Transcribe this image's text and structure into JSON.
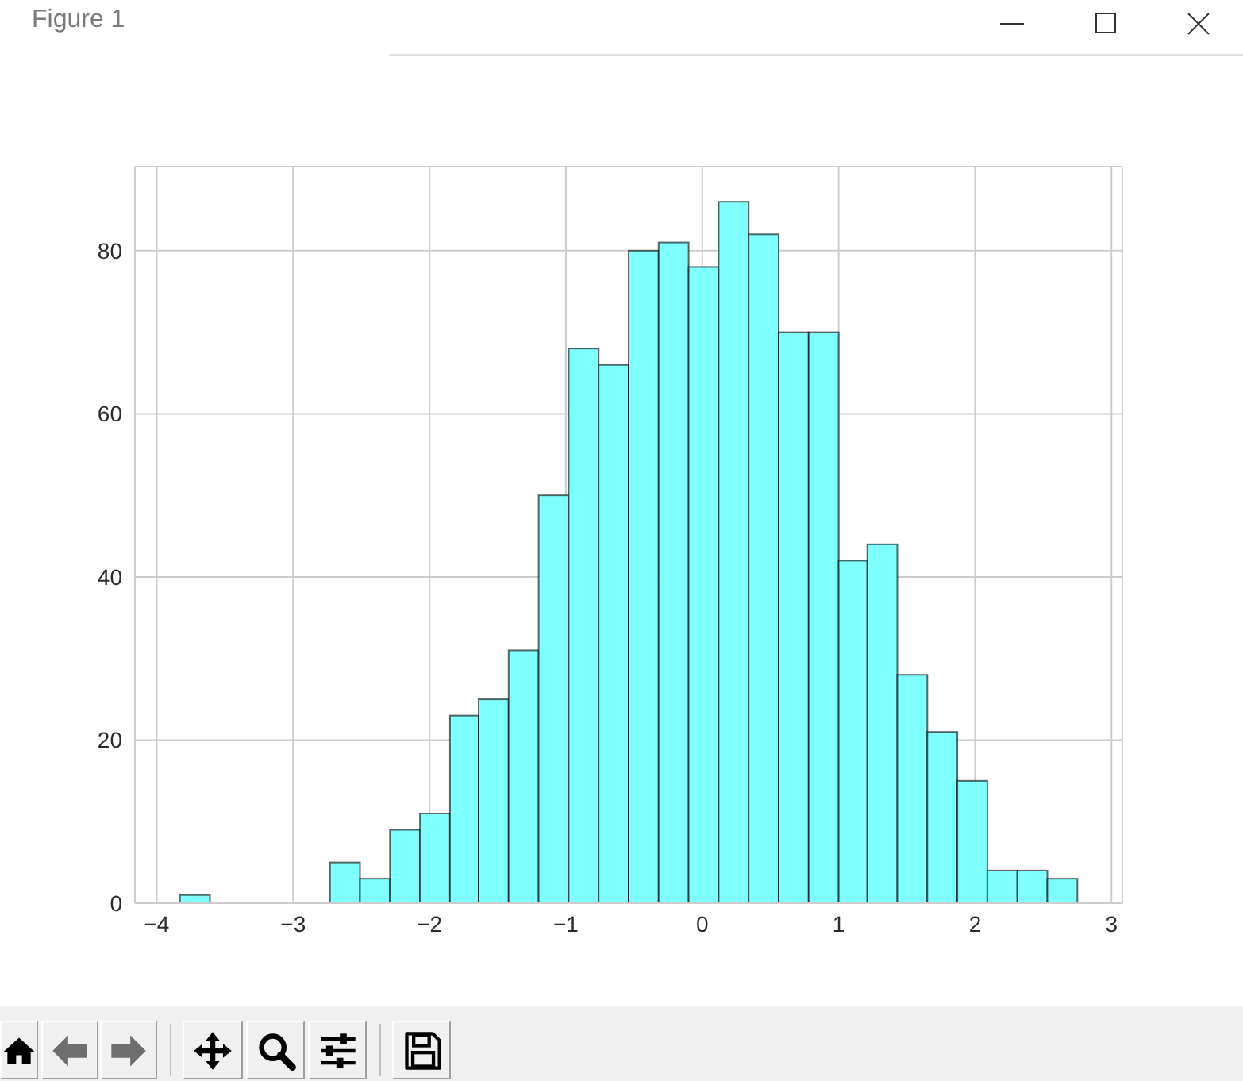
{
  "chart_data": {
    "type": "histogram",
    "annotations": [
      "Figure 1"
    ],
    "bins": [
      -3.83,
      -3.61,
      -2.73,
      -2.51,
      -2.29,
      -2.07,
      -1.85,
      -1.64,
      -1.42,
      -1.2,
      -0.98,
      -0.76,
      -0.54,
      -0.32,
      -0.1,
      0.12,
      0.34,
      0.56,
      0.78,
      1.0,
      1.21,
      1.43,
      1.65,
      1.87,
      2.09,
      2.31,
      2.53,
      2.75
    ],
    "values": [
      1,
      0,
      5,
      3,
      9,
      11,
      23,
      25,
      31,
      50,
      68,
      66,
      80,
      81,
      78,
      86,
      82,
      70,
      70,
      42,
      44,
      28,
      21,
      15,
      4,
      4,
      3
    ],
    "color": "#80ffff",
    "xlim": [
      -4.16,
      3.08
    ],
    "ylim": [
      0,
      90.3
    ],
    "xticks": [
      -4,
      -3,
      -2,
      -1,
      0,
      1,
      2,
      3
    ],
    "yticks": [
      0,
      20,
      40,
      60,
      80
    ],
    "grid": true
  }
}
